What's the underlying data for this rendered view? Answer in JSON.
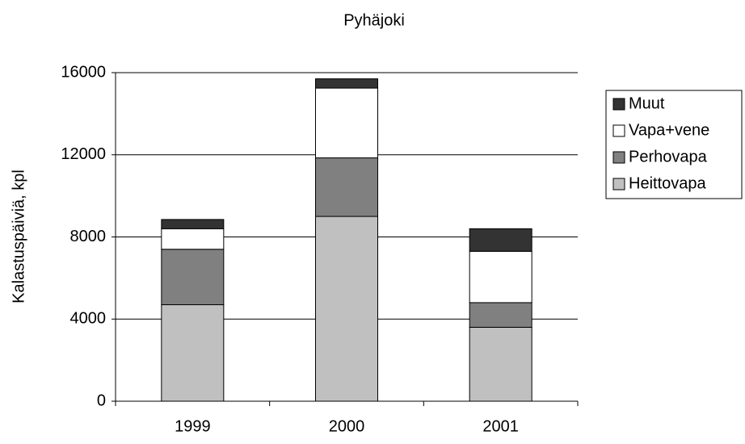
{
  "chart_data": {
    "type": "stacked_bar",
    "title": "Pyhäjoki",
    "y_label": "Kalastuspäiviä, kpl",
    "categories": [
      "1999",
      "2000",
      "2001"
    ],
    "series": [
      {
        "name": "Heittovapa",
        "color": "#c0c0c0",
        "values": [
          4700,
          9000,
          3600
        ]
      },
      {
        "name": "Perhovapa",
        "color": "#808080",
        "values": [
          2700,
          2850,
          1200
        ]
      },
      {
        "name": "Vapa+vene",
        "color": "#ffffff",
        "values": [
          1000,
          3400,
          2500
        ]
      },
      {
        "name": "Muut",
        "color": "#333333",
        "values": [
          450,
          450,
          1100
        ]
      }
    ],
    "ylim": [
      0,
      16000
    ],
    "yticks": [
      0,
      4000,
      8000,
      12000,
      16000
    ],
    "grid": true,
    "legend": "right"
  }
}
